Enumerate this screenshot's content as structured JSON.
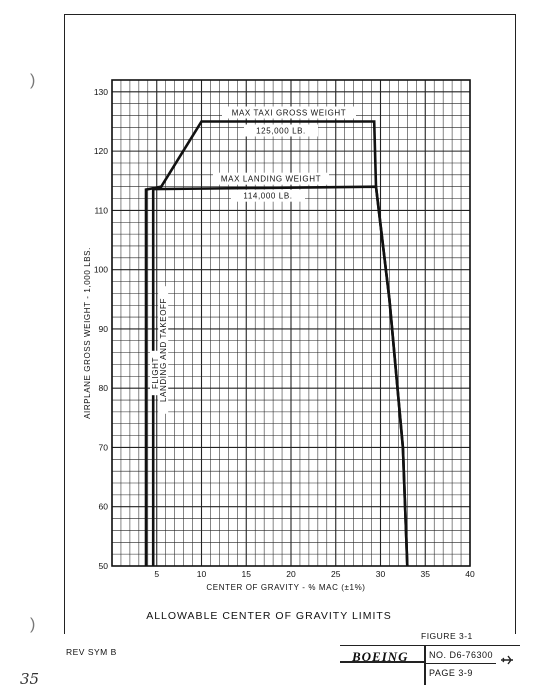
{
  "chart_data": {
    "type": "line",
    "title": "ALLOWABLE CENTER OF GRAVITY LIMITS",
    "xlabel": "CENTER OF GRAVITY - % MAC (±1%)",
    "ylabel": "AIRPLANE GROSS WEIGHT - 1,000 LBS.",
    "xlim": [
      0,
      40
    ],
    "ylim": [
      50,
      132
    ],
    "x_ticks": [
      "5",
      "10",
      "15",
      "20",
      "25",
      "30",
      "35",
      "40"
    ],
    "y_ticks": [
      "50",
      "60",
      "70",
      "80",
      "90",
      "100",
      "110",
      "120",
      "130"
    ],
    "grid": true,
    "series": [
      {
        "name": "FLIGHT",
        "points": [
          [
            3.8,
            50
          ],
          [
            3.8,
            113.5
          ],
          [
            5.5,
            114
          ],
          [
            10,
            125
          ],
          [
            29.3,
            125
          ],
          [
            29.5,
            114
          ],
          [
            31,
            95
          ],
          [
            32.5,
            70
          ],
          [
            33,
            50
          ]
        ]
      },
      {
        "name": "LANDING AND TAKEOFF",
        "points": [
          [
            4.6,
            50
          ],
          [
            4.6,
            113.6
          ],
          [
            29.5,
            114
          ],
          [
            31,
            95
          ],
          [
            32.5,
            70
          ],
          [
            33,
            50
          ]
        ]
      }
    ],
    "annotations": [
      {
        "text": "MAX TAXI GROSS WEIGHT",
        "x": 20,
        "y": 125
      },
      {
        "text": "125,000 LB.",
        "x": 20,
        "y": 125
      },
      {
        "text": "MAX LANDING WEIGHT",
        "x": 20,
        "y": 114
      },
      {
        "text": "114,000 LB.",
        "x": 20,
        "y": 114
      }
    ]
  },
  "footer": {
    "figure": "FIGURE 3-1",
    "rev": "REV SYM B",
    "brand": "BOEING",
    "doc_no": "NO. D6-76300",
    "page": "PAGE 3-9",
    "handwritten": "35"
  }
}
